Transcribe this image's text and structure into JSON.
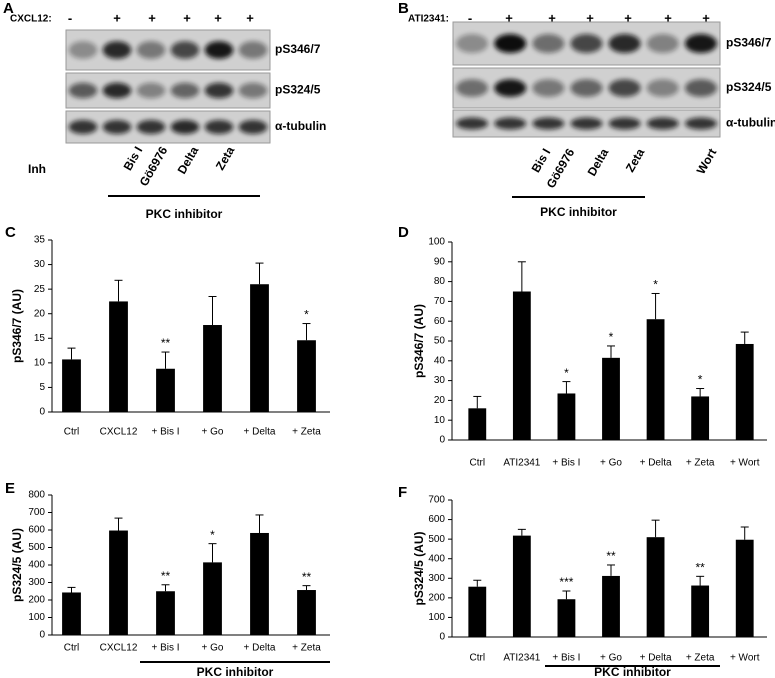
{
  "blots": [
    {
      "panel": "A",
      "treatment": "CXCL12:",
      "signs": [
        "-",
        "+",
        "+",
        "+",
        "+",
        "+"
      ],
      "rows": [
        "pS346/7",
        "pS324/5",
        "α-tubulin"
      ],
      "inhibitor_label": "Inh",
      "lanes": [
        "Bis I",
        "Gö6976",
        "Delta",
        "Zeta"
      ],
      "group_label": "PKC inhibitor"
    },
    {
      "panel": "B",
      "treatment": "ATI2341:",
      "signs": [
        "-",
        "+",
        "+",
        "+",
        "+",
        "+",
        "+"
      ],
      "rows": [
        "pS346/7",
        "pS324/5",
        "α-tubulin"
      ],
      "lanes": [
        "Bis I",
        "Gö6976",
        "Delta",
        "Zeta",
        "Wort"
      ],
      "group_label": "PKC inhibitor"
    }
  ],
  "chart_data": [
    {
      "type": "bar",
      "panel": "C",
      "y_label": "pS346/7 (AU)",
      "color": "#000000",
      "categories": [
        "Ctrl",
        "CXCL12",
        "+ Bis I",
        "+ Go",
        "+ Delta",
        "+ Zeta"
      ],
      "values": [
        10.7,
        22.5,
        8.8,
        17.7,
        26,
        14.6
      ],
      "errors": [
        2.3,
        4.3,
        3.4,
        5.8,
        4.3,
        3.4
      ],
      "annotations": [
        null,
        null,
        "**",
        null,
        null,
        "*"
      ],
      "ylim": [
        0,
        35
      ],
      "yticks": [
        0,
        5,
        10,
        15,
        20,
        25,
        30,
        35
      ]
    },
    {
      "type": "bar",
      "panel": "D",
      "y_label": "pS346/7 (AU)",
      "color": "#000000",
      "categories": [
        "Ctrl",
        "ATI2341",
        "+ Bis I",
        "+ Go",
        "+ Delta",
        "+ Zeta",
        "+ Wort"
      ],
      "values": [
        16,
        75,
        23.5,
        41.5,
        61,
        22,
        48.5
      ],
      "errors": [
        6,
        15,
        6,
        6,
        13,
        4,
        6
      ],
      "annotations": [
        null,
        null,
        "*",
        "*",
        "*",
        "*",
        null
      ],
      "ylim": [
        0,
        100
      ],
      "yticks": [
        0,
        10,
        20,
        30,
        40,
        50,
        60,
        70,
        80,
        90,
        100
      ]
    },
    {
      "type": "bar",
      "panel": "E",
      "y_label": "pS324/5 (AU)",
      "color": "#000000",
      "categories": [
        "Ctrl",
        "CXCL12",
        "+ Bis I",
        "+ Go",
        "+ Delta",
        "+ Zeta"
      ],
      "values": [
        243,
        597,
        250,
        415,
        583,
        257
      ],
      "errors": [
        29,
        71,
        37,
        107,
        103,
        25
      ],
      "annotations": [
        null,
        null,
        "**",
        "*",
        null,
        "**"
      ],
      "group_label": "PKC inhibitor",
      "ylim": [
        0,
        800
      ],
      "yticks": [
        0,
        100,
        200,
        300,
        400,
        500,
        600,
        700,
        800
      ]
    },
    {
      "type": "bar",
      "panel": "F",
      "y_label": "pS324/5 (AU)",
      "color": "#000000",
      "categories": [
        "Ctrl",
        "ATI2341",
        "+ Bis I",
        "+ Go",
        "+ Delta",
        "+ Zeta",
        "+ Wort"
      ],
      "values": [
        257,
        518,
        193,
        312,
        510,
        263,
        497
      ],
      "errors": [
        33,
        32,
        42,
        56,
        87,
        47,
        65
      ],
      "annotations": [
        null,
        null,
        "***",
        "**",
        null,
        "**",
        null
      ],
      "group_label": "PKC inhibitor",
      "ylim": [
        0,
        700
      ],
      "yticks": [
        0,
        100,
        200,
        300,
        400,
        500,
        600,
        700
      ]
    }
  ]
}
